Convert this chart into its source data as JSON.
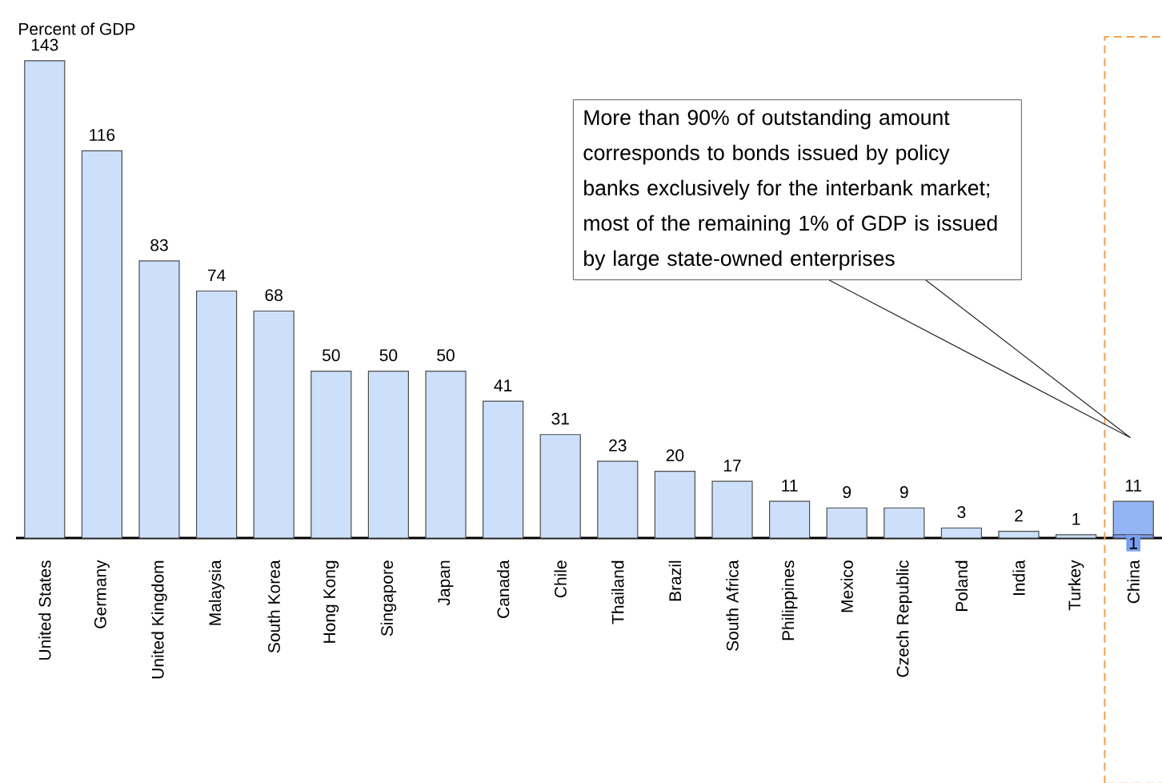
{
  "chart_data": {
    "type": "bar",
    "ylabel": "Percent of GDP",
    "categories": [
      "United States",
      "Germany",
      "United Kingdom",
      "Malaysia",
      "South Korea",
      "Hong Kong",
      "Singapore",
      "Japan",
      "Canada",
      "Chile",
      "Thailand",
      "Brazil",
      "South Africa",
      "Philippines",
      "Mexico",
      "Czech Republic",
      "Poland",
      "India",
      "Turkey",
      "China"
    ],
    "stacked": true,
    "series": [
      {
        "colors": [
          null,
          null,
          null,
          null,
          null,
          null,
          null,
          null,
          null,
          null,
          null,
          null,
          null,
          null,
          null,
          null,
          null,
          null,
          null,
          "#7b9ef0"
        ],
        "values": [
          null,
          null,
          null,
          null,
          null,
          null,
          null,
          null,
          null,
          null,
          null,
          null,
          null,
          null,
          null,
          null,
          null,
          null,
          null,
          1
        ],
        "value_labels": [
          null,
          null,
          null,
          null,
          null,
          null,
          null,
          null,
          null,
          null,
          null,
          null,
          null,
          null,
          null,
          null,
          null,
          null,
          null,
          "1"
        ]
      },
      {
        "colors": [
          "#cce0fb",
          "#cce0fb",
          "#cce0fb",
          "#cce0fb",
          "#cce0fb",
          "#cce0fb",
          "#cce0fb",
          "#cce0fb",
          "#cce0fb",
          "#cce0fb",
          "#cce0fb",
          "#cce0fb",
          "#cce0fb",
          "#cce0fb",
          "#cce0fb",
          "#cce0fb",
          "#cce0fb",
          "#cce0fb",
          "#cce0fb",
          "#93b4f5"
        ],
        "values": [
          143,
          116,
          83,
          74,
          68,
          50,
          50,
          50,
          41,
          31,
          23,
          20,
          17,
          11,
          9,
          9,
          3,
          2,
          1,
          10
        ]
      }
    ],
    "totals": [
      "143",
      "116",
      "83",
      "74",
      "68",
      "50",
      "50",
      "50",
      "41",
      "31",
      "23",
      "20",
      "17",
      "11",
      "9",
      "9",
      "3",
      "2",
      "1",
      "11"
    ],
    "annotations": [
      "More than 90% of outstanding amount corresponds to bonds issued by policy banks exclusively for the interbank market; most of the remaining 1% of GDP is issued by large state-owned enterprises"
    ]
  }
}
